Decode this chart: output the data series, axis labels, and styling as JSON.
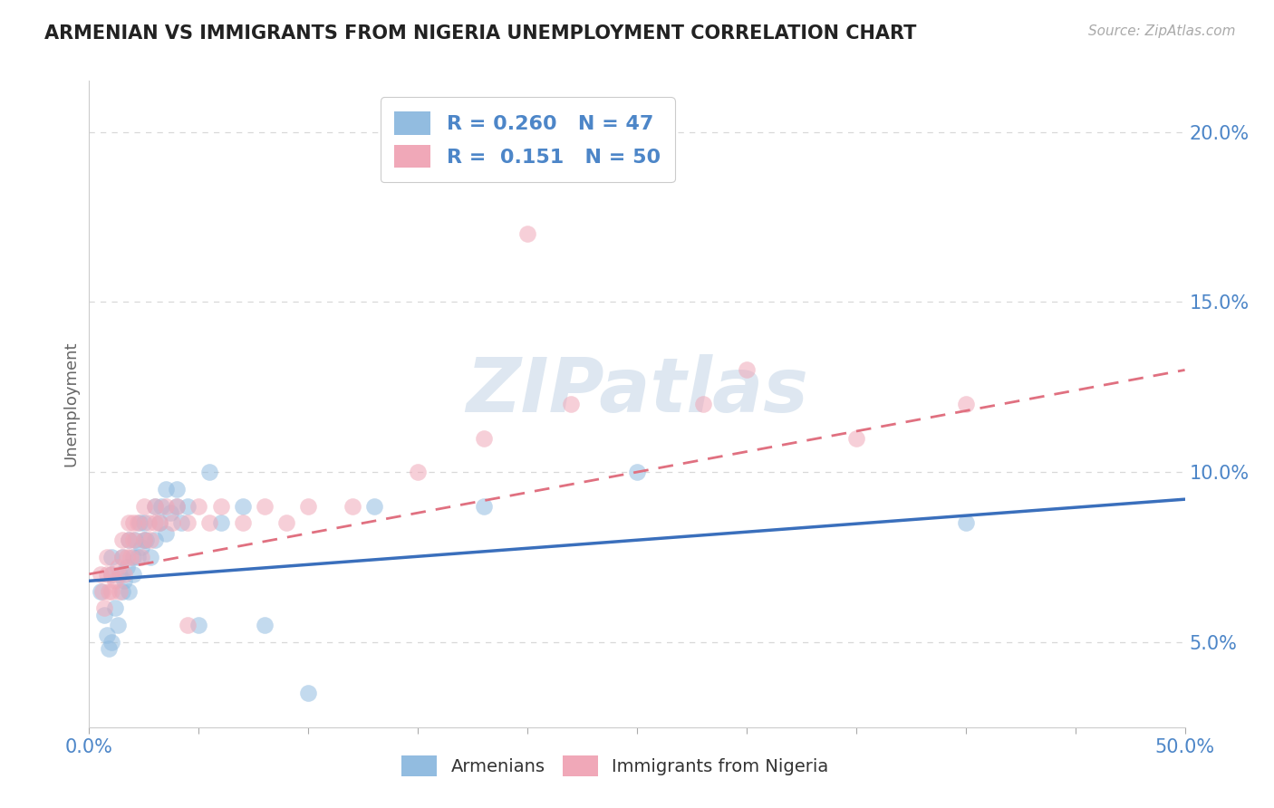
{
  "title": "ARMENIAN VS IMMIGRANTS FROM NIGERIA UNEMPLOYMENT CORRELATION CHART",
  "source": "Source: ZipAtlas.com",
  "ylabel": "Unemployment",
  "xlim": [
    0,
    0.5
  ],
  "ylim": [
    0.025,
    0.215
  ],
  "yticks": [
    0.05,
    0.1,
    0.15,
    0.2
  ],
  "ytick_labels": [
    "5.0%",
    "10.0%",
    "15.0%",
    "20.0%"
  ],
  "xtick_step": 0.05,
  "background_color": "#ffffff",
  "watermark": "ZIPatlas",
  "legend_line1": "R = 0.260   N = 47",
  "legend_line2": "R =  0.151   N = 50",
  "color_armenian": "#92bce0",
  "color_nigeria": "#f0a8b8",
  "color_text_blue": "#4d86c8",
  "color_line_armenian": "#3a6fbc",
  "color_line_nigeria": "#e07080",
  "color_grid": "#d8d8d8",
  "armenian_x": [
    0.005,
    0.007,
    0.008,
    0.009,
    0.01,
    0.01,
    0.01,
    0.012,
    0.013,
    0.014,
    0.015,
    0.015,
    0.016,
    0.017,
    0.018,
    0.018,
    0.02,
    0.02,
    0.021,
    0.022,
    0.023,
    0.024,
    0.025,
    0.025,
    0.026,
    0.028,
    0.03,
    0.03,
    0.032,
    0.033,
    0.035,
    0.035,
    0.037,
    0.04,
    0.04,
    0.042,
    0.045,
    0.05,
    0.055,
    0.06,
    0.07,
    0.08,
    0.1,
    0.13,
    0.18,
    0.25,
    0.4
  ],
  "armenian_y": [
    0.065,
    0.058,
    0.052,
    0.048,
    0.05,
    0.07,
    0.075,
    0.06,
    0.055,
    0.07,
    0.065,
    0.075,
    0.068,
    0.072,
    0.065,
    0.08,
    0.07,
    0.075,
    0.08,
    0.075,
    0.085,
    0.078,
    0.08,
    0.085,
    0.08,
    0.075,
    0.08,
    0.09,
    0.085,
    0.09,
    0.082,
    0.095,
    0.088,
    0.09,
    0.095,
    0.085,
    0.09,
    0.055,
    0.1,
    0.085,
    0.09,
    0.055,
    0.035,
    0.09,
    0.09,
    0.1,
    0.085
  ],
  "nigeria_x": [
    0.005,
    0.006,
    0.007,
    0.008,
    0.008,
    0.009,
    0.01,
    0.01,
    0.012,
    0.013,
    0.014,
    0.015,
    0.015,
    0.016,
    0.017,
    0.018,
    0.018,
    0.019,
    0.02,
    0.02,
    0.022,
    0.024,
    0.025,
    0.025,
    0.027,
    0.028,
    0.03,
    0.03,
    0.032,
    0.035,
    0.038,
    0.04,
    0.045,
    0.05,
    0.055,
    0.06,
    0.07,
    0.08,
    0.09,
    0.1,
    0.12,
    0.15,
    0.18,
    0.2,
    0.22,
    0.28,
    0.3,
    0.35,
    0.4,
    0.045
  ],
  "nigeria_y": [
    0.07,
    0.065,
    0.06,
    0.07,
    0.075,
    0.065,
    0.065,
    0.07,
    0.068,
    0.072,
    0.065,
    0.075,
    0.08,
    0.07,
    0.075,
    0.08,
    0.085,
    0.075,
    0.08,
    0.085,
    0.085,
    0.075,
    0.08,
    0.09,
    0.085,
    0.08,
    0.085,
    0.09,
    0.085,
    0.09,
    0.085,
    0.09,
    0.085,
    0.09,
    0.085,
    0.09,
    0.085,
    0.09,
    0.085,
    0.09,
    0.09,
    0.1,
    0.11,
    0.17,
    0.12,
    0.12,
    0.13,
    0.11,
    0.12,
    0.055
  ],
  "trend_arm_x0": 0.0,
  "trend_arm_y0": 0.068,
  "trend_arm_x1": 0.5,
  "trend_arm_y1": 0.092,
  "trend_nig_x0": 0.0,
  "trend_nig_y0": 0.07,
  "trend_nig_x1": 0.5,
  "trend_nig_y1": 0.13
}
